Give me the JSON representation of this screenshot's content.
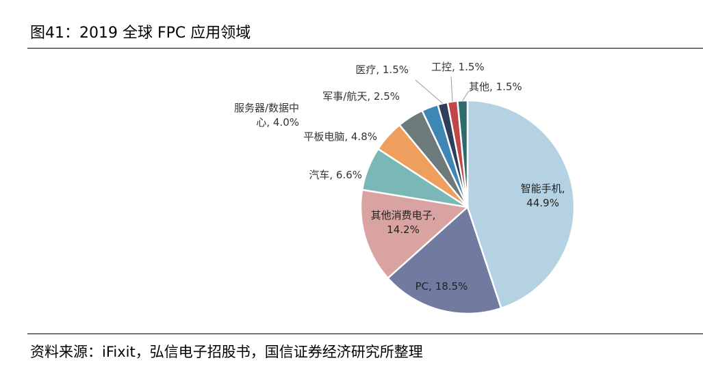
{
  "title": "图41：2019 全球 FPC 应用领域",
  "source": "资料来源：iFixit，弘信电子招股书，国信证券经济研究所整理",
  "chart_data": {
    "type": "pie",
    "start_angle_deg": 0,
    "direction": "clockwise",
    "slices": [
      {
        "name": "智能手机",
        "value": 44.9,
        "label": [
          "智能手机,",
          "44.9%"
        ],
        "color": "#b5d2e3"
      },
      {
        "name": "PC",
        "value": 18.5,
        "label": [
          "PC, 18.5%"
        ],
        "color": "#717b9f"
      },
      {
        "name": "其他消费电子",
        "value": 14.2,
        "label": [
          "其他消费电子,",
          "14.2%"
        ],
        "color": "#d8a3a1"
      },
      {
        "name": "汽车",
        "value": 6.6,
        "label": [
          "汽车, 6.6%"
        ],
        "color": "#79b8b6"
      },
      {
        "name": "平板电脑",
        "value": 4.8,
        "label": [
          "平板电脑, 4.8%"
        ],
        "color": "#ee9e5d"
      },
      {
        "name": "服务器/数据中心",
        "value": 4.0,
        "label": [
          "服务器/数据中",
          "心, 4.0%"
        ],
        "color": "#6d7a7a"
      },
      {
        "name": "军事/航天",
        "value": 2.5,
        "label": [
          "军事/航天, 2.5%"
        ],
        "color": "#3e86b6"
      },
      {
        "name": "医疗",
        "value": 1.5,
        "label": [
          "医疗, 1.5%"
        ],
        "color": "#2f3e5c"
      },
      {
        "name": "工控",
        "value": 1.5,
        "label": [
          "工控, 1.5%"
        ],
        "color": "#bf4747"
      },
      {
        "name": "其他",
        "value": 1.5,
        "label": [
          "其他, 1.5%"
        ],
        "color": "#2f6b6b"
      }
    ]
  }
}
